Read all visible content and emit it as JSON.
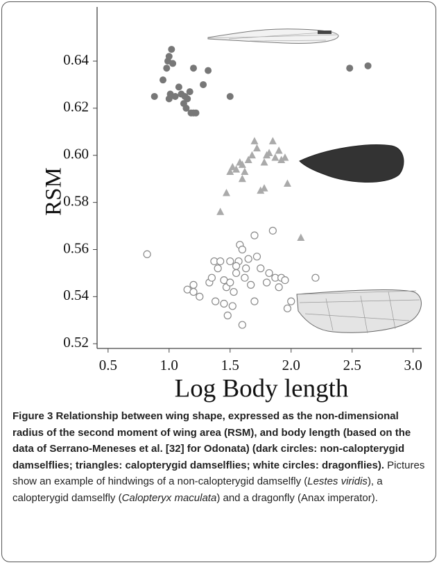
{
  "chart_data": {
    "type": "scatter",
    "xlabel": "Log Body length",
    "ylabel": "RSM",
    "xlim": [
      0.41,
      3.07
    ],
    "ylim": [
      0.518,
      0.663
    ],
    "xticks": [
      {
        "value": 0.5,
        "label": "0.5"
      },
      {
        "value": 1,
        "label": "1.0"
      },
      {
        "value": 1.5,
        "label": "1.5"
      },
      {
        "value": 2,
        "label": "2.0"
      },
      {
        "value": 2.5,
        "label": "2.5"
      },
      {
        "value": 3,
        "label": "3.0"
      }
    ],
    "yticks": [
      0.52,
      0.54,
      0.56,
      0.58,
      {
        "value": 0.6,
        "label": "0.60"
      },
      0.62,
      0.64
    ],
    "series": [
      {
        "marker": "circle",
        "filled": true,
        "color": "#777777",
        "x": [
          0.88,
          0.95,
          0.98,
          0.99,
          1.0,
          1.02,
          1.03,
          1.0,
          1.01,
          1.05,
          1.08,
          1.1,
          1.12,
          1.15,
          1.14,
          1.18,
          1.2,
          1.22,
          1.17,
          1.2,
          1.32,
          1.28,
          1.5,
          1.13,
          2.48,
          2.63
        ],
        "y": [
          0.625,
          0.632,
          0.637,
          0.64,
          0.642,
          0.645,
          0.639,
          0.624,
          0.626,
          0.625,
          0.629,
          0.626,
          0.622,
          0.624,
          0.62,
          0.618,
          0.618,
          0.618,
          0.627,
          0.637,
          0.636,
          0.63,
          0.625,
          0.625,
          0.637,
          0.638
        ]
      },
      {
        "marker": "triangle",
        "filled": true,
        "color": "#aaaaaa",
        "x": [
          1.42,
          1.47,
          1.5,
          1.52,
          1.55,
          1.58,
          1.6,
          1.62,
          1.65,
          1.68,
          1.7,
          1.72,
          1.75,
          1.78,
          1.78,
          1.8,
          1.82,
          1.85,
          1.87,
          1.9,
          1.92,
          1.95,
          1.97,
          1.6,
          2.08
        ],
        "y": [
          0.576,
          0.584,
          0.593,
          0.595,
          0.594,
          0.597,
          0.596,
          0.593,
          0.598,
          0.6,
          0.606,
          0.603,
          0.585,
          0.586,
          0.597,
          0.6,
          0.601,
          0.606,
          0.599,
          0.602,
          0.598,
          0.599,
          0.588,
          0.59,
          0.565
        ]
      },
      {
        "marker": "circle",
        "filled": false,
        "color": "#888888",
        "x": [
          0.82,
          1.15,
          1.2,
          1.2,
          1.25,
          1.33,
          1.35,
          1.37,
          1.38,
          1.4,
          1.42,
          1.45,
          1.47,
          1.48,
          1.5,
          1.52,
          1.53,
          1.55,
          1.57,
          1.58,
          1.6,
          1.6,
          1.62,
          1.63,
          1.65,
          1.67,
          1.7,
          1.7,
          1.72,
          1.75,
          1.8,
          1.82,
          1.85,
          1.87,
          1.9,
          1.92,
          1.95,
          1.97,
          2.0,
          2.2,
          1.55,
          1.5,
          1.45
        ],
        "y": [
          0.558,
          0.543,
          0.545,
          0.542,
          0.54,
          0.546,
          0.548,
          0.555,
          0.538,
          0.552,
          0.555,
          0.547,
          0.544,
          0.532,
          0.546,
          0.536,
          0.542,
          0.55,
          0.555,
          0.562,
          0.56,
          0.528,
          0.548,
          0.552,
          0.556,
          0.545,
          0.566,
          0.538,
          0.557,
          0.552,
          0.546,
          0.55,
          0.568,
          0.548,
          0.544,
          0.548,
          0.547,
          0.535,
          0.538,
          0.548,
          0.553,
          0.555,
          0.537
        ]
      }
    ]
  },
  "caption": {
    "label": "Figure 3",
    "bold": "Relationship between wing shape, expressed as the non-dimensional radius of the second moment of wing area (RSM), and body length (based on the data of Serrano-Meneses et al. [32] for Odonata) (dark circles: non-calopterygid damselflies; triangles: calopterygid damselflies; white circles: dragonflies).",
    "text": [
      "Pictures show an example of hindwings of a non-calopterygid damselfly (",
      "Lestes viridis",
      "), a calopterygid damselfly (",
      "Calopteryx maculata",
      ") and a dragonfly (Anax imperator)."
    ]
  }
}
